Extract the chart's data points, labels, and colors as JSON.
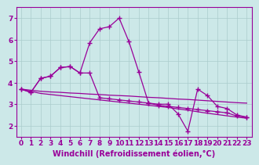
{
  "background_color": "#cce8e8",
  "line_color": "#990099",
  "grid_color": "#aacccc",
  "xlabel": "Windchill (Refroidissement éolien,°C)",
  "xlim": [
    -0.5,
    23.5
  ],
  "ylim": [
    1.5,
    7.5
  ],
  "yticks": [
    2,
    3,
    4,
    5,
    6,
    7
  ],
  "xticks": [
    0,
    1,
    2,
    3,
    4,
    5,
    6,
    7,
    8,
    9,
    10,
    11,
    12,
    13,
    14,
    15,
    16,
    17,
    18,
    19,
    20,
    21,
    22,
    23
  ],
  "series1_x": [
    0,
    1,
    2,
    3,
    4,
    5,
    6,
    7,
    8,
    9,
    10,
    11,
    12,
    13,
    14,
    15,
    16,
    17,
    18,
    19,
    20,
    21,
    22,
    23
  ],
  "series1_y": [
    3.7,
    3.6,
    3.5,
    3.45,
    3.4,
    3.35,
    3.3,
    3.25,
    3.2,
    3.15,
    3.1,
    3.05,
    3.0,
    2.95,
    2.9,
    2.85,
    2.78,
    2.72,
    2.65,
    2.58,
    2.52,
    2.46,
    2.4,
    2.35
  ],
  "series2_x": [
    0,
    1,
    2,
    3,
    4,
    5,
    6,
    7,
    8,
    9,
    10,
    11,
    12,
    13,
    14,
    15,
    16,
    17,
    18,
    19,
    20,
    21,
    22,
    23
  ],
  "series2_y": [
    3.7,
    3.65,
    3.6,
    3.57,
    3.55,
    3.52,
    3.5,
    3.47,
    3.45,
    3.42,
    3.4,
    3.38,
    3.35,
    3.32,
    3.3,
    3.27,
    3.24,
    3.22,
    3.19,
    3.16,
    3.13,
    3.1,
    3.07,
    3.05
  ],
  "series3_x": [
    0,
    1,
    2,
    3,
    4,
    5,
    6,
    7,
    8,
    9,
    10,
    11,
    12,
    13,
    14,
    15,
    16,
    17,
    18,
    19,
    20,
    21,
    22,
    23
  ],
  "series3_y": [
    3.7,
    3.55,
    4.2,
    4.3,
    4.7,
    4.75,
    4.45,
    5.85,
    6.5,
    6.6,
    7.0,
    5.9,
    4.5,
    3.05,
    3.0,
    3.0,
    2.55,
    1.75,
    3.7,
    3.4,
    2.9,
    2.8,
    2.5,
    2.4
  ],
  "series4_x": [
    0,
    1,
    2,
    3,
    4,
    5,
    6,
    7,
    8,
    9,
    10,
    11,
    12,
    13,
    14,
    15,
    16,
    17,
    18,
    19,
    20,
    21,
    22,
    23
  ],
  "series4_y": [
    3.7,
    3.55,
    4.2,
    4.3,
    4.7,
    4.75,
    4.45,
    4.45,
    3.3,
    3.25,
    3.2,
    3.15,
    3.1,
    3.05,
    2.95,
    2.9,
    2.85,
    2.8,
    2.75,
    2.7,
    2.65,
    2.6,
    2.45,
    2.4
  ],
  "tick_fontsize": 6.5,
  "xlabel_fontsize": 7
}
